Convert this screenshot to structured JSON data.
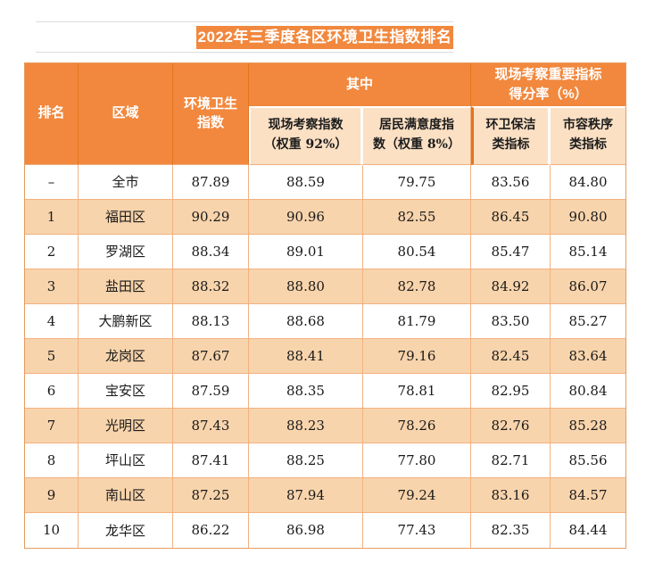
{
  "title": {
    "text": "2022年三季度各区环境卫生指数排名"
  },
  "table": {
    "headers": {
      "rank": "排名",
      "district": "区域",
      "index": "环境卫生\n指数",
      "group_among": "其中",
      "group_score": "现场考察重要指标\n得分率（%）",
      "sub_inspection": "现场考察指数\n（权重 92%）",
      "sub_satisfaction": "居民满意度指\n数（权重 8%）",
      "sub_sanitation": "环卫保洁\n类指标",
      "sub_order": "市容秩序\n类指标"
    }
  },
  "colors": {
    "header_orange": "#f1883e",
    "header_divider_orange": "#e2751f",
    "subheader_peach": "#fbe0c4",
    "row_stripe_peach": "#f8d4ac",
    "cell_border_light": "#f3b181",
    "table_outer_border": "#e59c5e",
    "title_text": "#ffffff",
    "body_text": "#1a1a1a",
    "rule_gray": "#dcdcdc"
  },
  "chart_data": {
    "type": "table",
    "title": "2022年三季度各区环境卫生指数排名",
    "columns": [
      "排名",
      "区域",
      "环境卫生指数",
      "现场考察指数（权重 92%）",
      "居民满意度指数（权重 8%）",
      "环卫保洁类指标",
      "市容秩序类指标"
    ],
    "column_groups": [
      {
        "label": "其中",
        "spans": [
          "现场考察指数（权重 92%）",
          "居民满意度指数（权重 8%）"
        ]
      },
      {
        "label": "现场考察重要指标得分率（%）",
        "spans": [
          "环卫保洁类指标",
          "市容秩序类指标"
        ]
      }
    ],
    "rows": [
      [
        "–",
        "全市",
        "87.89",
        "88.59",
        "79.75",
        "83.56",
        "84.80"
      ],
      [
        "1",
        "福田区",
        "90.29",
        "90.96",
        "82.55",
        "86.45",
        "90.80"
      ],
      [
        "2",
        "罗湖区",
        "88.34",
        "89.01",
        "80.54",
        "85.47",
        "85.14"
      ],
      [
        "3",
        "盐田区",
        "88.32",
        "88.80",
        "82.78",
        "84.92",
        "86.07"
      ],
      [
        "4",
        "大鹏新区",
        "88.13",
        "88.68",
        "81.79",
        "83.50",
        "85.27"
      ],
      [
        "5",
        "龙岗区",
        "87.67",
        "88.41",
        "79.16",
        "82.45",
        "83.64"
      ],
      [
        "6",
        "宝安区",
        "87.59",
        "88.35",
        "78.81",
        "82.95",
        "80.84"
      ],
      [
        "7",
        "光明区",
        "87.43",
        "88.23",
        "78.26",
        "82.76",
        "85.28"
      ],
      [
        "8",
        "坪山区",
        "87.41",
        "88.25",
        "77.80",
        "82.71",
        "85.56"
      ],
      [
        "9",
        "南山区",
        "87.25",
        "87.94",
        "79.24",
        "83.16",
        "84.57"
      ],
      [
        "10",
        "龙华区",
        "86.22",
        "86.98",
        "77.43",
        "82.35",
        "84.44"
      ]
    ]
  }
}
